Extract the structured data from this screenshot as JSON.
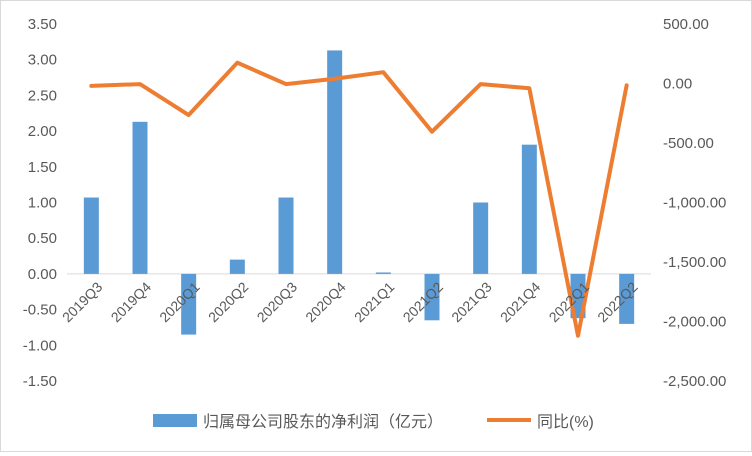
{
  "chart_data": {
    "type": "bar+line",
    "categories": [
      "2019Q3",
      "2019Q4",
      "2020Q1",
      "2020Q2",
      "2020Q3",
      "2020Q4",
      "2021Q1",
      "2021Q2",
      "2021Q3",
      "2021Q4",
      "2022Q1",
      "2022Q2"
    ],
    "series": [
      {
        "name": "归属母公司股东的净利润（亿元）",
        "type": "bar",
        "axis": "left",
        "color": "#5b9bd5",
        "values": [
          1.07,
          2.13,
          -0.85,
          0.2,
          1.07,
          3.13,
          0.02,
          -0.65,
          1.0,
          1.81,
          -0.62,
          -0.7
        ]
      },
      {
        "name": "同比(%)",
        "type": "line",
        "axis": "right",
        "color": "#ed7d31",
        "values": [
          -20,
          -5,
          -265,
          175,
          -5,
          40,
          95,
          -405,
          -5,
          -40,
          -2120,
          -15
        ]
      }
    ],
    "y_left": {
      "min": -1.5,
      "max": 3.5,
      "step": 0.5,
      "tick_labels": [
        "-1.50",
        "-1.00",
        "-0.50",
        "0.00",
        "0.50",
        "1.00",
        "1.50",
        "2.00",
        "2.50",
        "3.00",
        "3.50"
      ]
    },
    "y_right": {
      "min": -2500,
      "max": 500,
      "step": 500,
      "tick_labels": [
        "-2,500.00",
        "-2,000.00",
        "-1,500.00",
        "-1,000.00",
        "-500.00",
        "0.00",
        "500.00"
      ]
    },
    "grid": false,
    "legend_position": "bottom"
  },
  "legend": {
    "bar_label": "归属母公司股东的净利润（亿元）",
    "line_label": "同比(%)"
  }
}
